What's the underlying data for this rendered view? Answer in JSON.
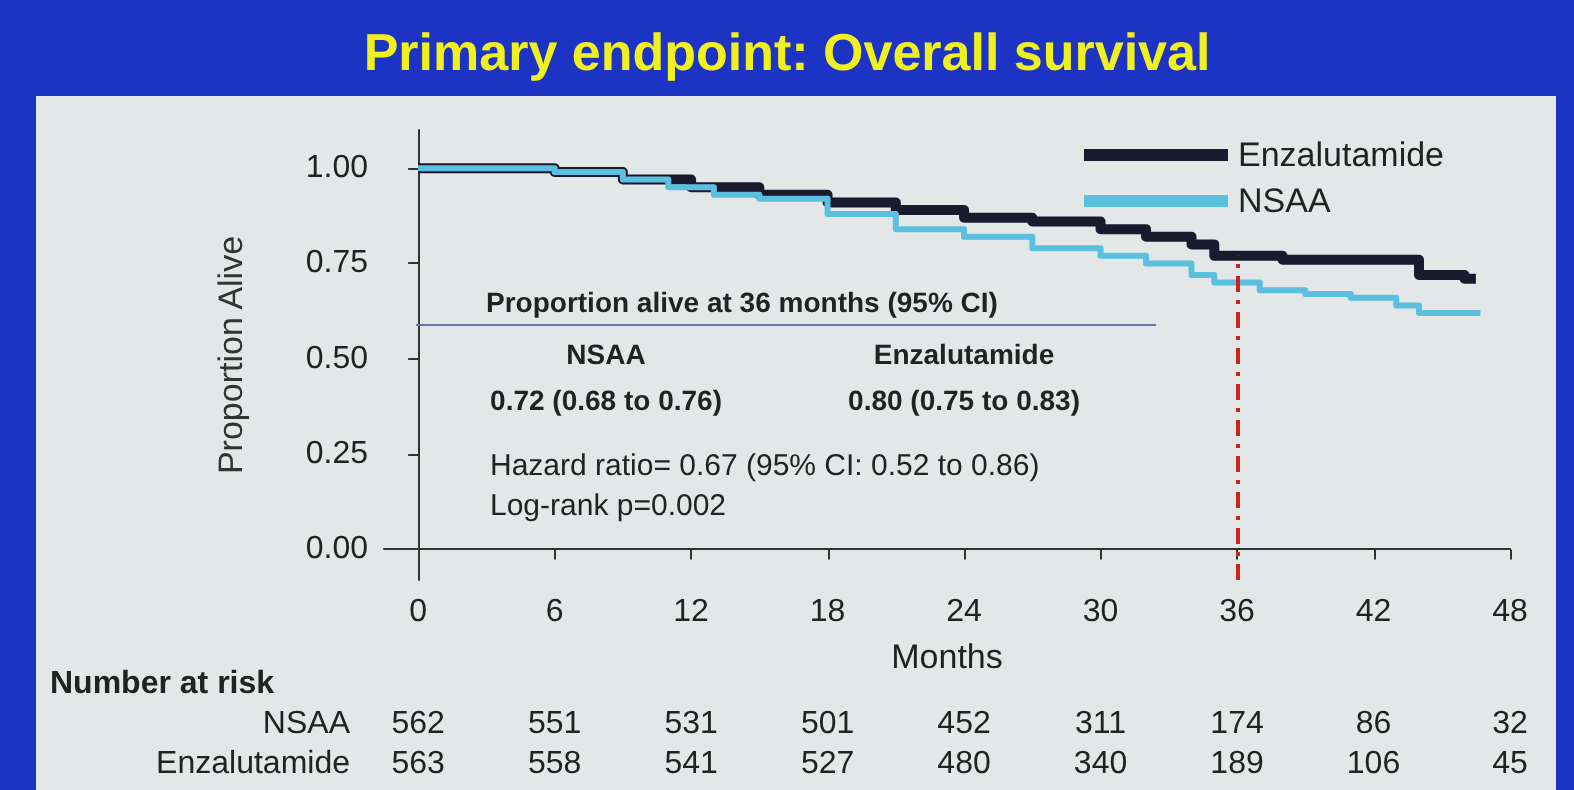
{
  "chart_data": {
    "type": "step",
    "title": "Primary endpoint: Overall survival",
    "xlabel": "Months",
    "ylabel": "Proportion Alive",
    "series": [
      {
        "name": "Enzalutamide",
        "color": "#1a1a2e",
        "x": [
          0,
          6,
          9,
          12,
          15,
          18,
          21,
          24,
          27,
          30,
          32,
          34,
          35,
          37,
          38,
          43,
          44,
          46,
          46.5
        ],
        "values": [
          1.0,
          0.99,
          0.97,
          0.95,
          0.93,
          0.91,
          0.89,
          0.87,
          0.86,
          0.84,
          0.82,
          0.8,
          0.77,
          0.77,
          0.76,
          0.76,
          0.72,
          0.71,
          0.71
        ]
      },
      {
        "name": "NSAA",
        "color": "#5bc0e0",
        "x": [
          0,
          6,
          9,
          11,
          13,
          15,
          18,
          21,
          24,
          27,
          30,
          32,
          34,
          35,
          37,
          39,
          41,
          43,
          44,
          46.7
        ],
        "values": [
          1.0,
          0.99,
          0.97,
          0.95,
          0.93,
          0.92,
          0.88,
          0.84,
          0.82,
          0.79,
          0.77,
          0.75,
          0.72,
          0.7,
          0.68,
          0.67,
          0.66,
          0.64,
          0.62,
          0.62
        ]
      }
    ],
    "xlim": [
      -1.5,
      48
    ],
    "xticks": [
      0,
      6,
      12,
      18,
      24,
      30,
      36,
      42,
      48
    ],
    "ylim": [
      -0.08,
      1.1
    ],
    "yticks": [
      {
        "value": 0,
        "label": "0.00"
      },
      {
        "value": 0.25,
        "label": "0.25"
      },
      {
        "value": 0.5,
        "label": "0.50"
      },
      {
        "value": 0.75,
        "label": "0.75"
      },
      {
        "value": 1,
        "label": "1.00"
      }
    ],
    "ref_lines": [
      {
        "axis": "x",
        "value": 36,
        "color": "#cc2222",
        "line_style": "dashed"
      }
    ],
    "annotations": [
      "Proportion alive at 36 months (95% CI)",
      "NSAA",
      "Enzalutamide",
      "0.72 (0.68 to 0.76)",
      "0.80 (0.75 to 0.83)",
      "Hazard ratio= 0.67 (95% CI: 0.52 to 0.86)",
      "Log-rank p=0.002",
      "Number at risk",
      "NSAA 562 551 531 501 452 311 174 86 32",
      "Enzalutamide 563 558 541 527 480 340 189 106 45"
    ],
    "legend": "top right",
    "grid": false,
    "marker": "none",
    "line_style": "solid"
  }
}
